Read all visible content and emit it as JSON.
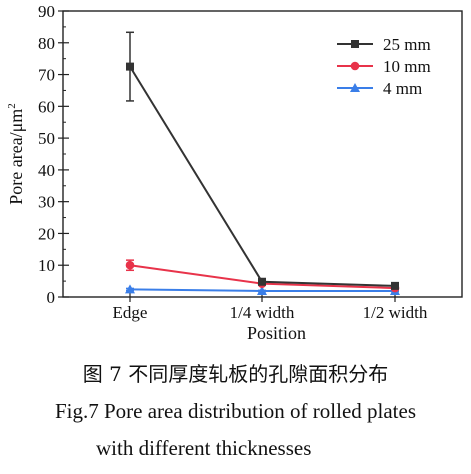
{
  "chart_data": {
    "type": "line",
    "categories": [
      "Edge",
      "1/4 width",
      "1/2 width"
    ],
    "xlabel": "Position",
    "ylabel_main": "Pore area/μm",
    "ylabel_sup": "2",
    "ylim": [
      0,
      90
    ],
    "yticks": [
      "0",
      "10",
      "20",
      "30",
      "40",
      "50",
      "60",
      "70",
      "80",
      "90"
    ],
    "grid": false,
    "legend_position": "top-right",
    "series": [
      {
        "name": "25 mm",
        "color": "#333333",
        "marker": "square",
        "values": [
          72.5,
          4.8,
          3.5
        ],
        "errors": [
          10.8,
          0.6,
          0.5
        ]
      },
      {
        "name": "10 mm",
        "color": "#e8334a",
        "marker": "circle",
        "values": [
          10.0,
          4.2,
          2.8
        ],
        "errors": [
          1.6,
          0.4,
          0.4
        ]
      },
      {
        "name": "4 mm",
        "color": "#3a7ee8",
        "marker": "triangle",
        "values": [
          2.4,
          1.9,
          1.9
        ],
        "errors": [
          0.3,
          0.2,
          0.2
        ]
      }
    ]
  },
  "caption": {
    "cn": "图 7   不同厚度轧板的孔隙面积分布",
    "en_line1": "Fig.7    Pore area distribution of rolled plates",
    "en_line2": "with different thicknesses"
  }
}
